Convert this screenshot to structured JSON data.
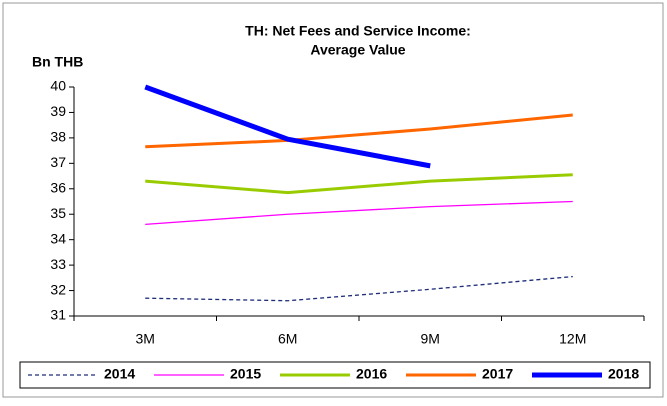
{
  "chart_data": {
    "type": "line",
    "title": [
      "TH: Net Fees and Service Income:",
      "Average Value"
    ],
    "y_label": "Bn THB",
    "categories": [
      "3M",
      "6M",
      "9M",
      "12M"
    ],
    "series": [
      {
        "name": "2014",
        "color": "#1f2d7a",
        "width": 1.3,
        "dash": true,
        "values": [
          31.7,
          31.6,
          32.05,
          32.55
        ]
      },
      {
        "name": "2015",
        "color": "#ff00ff",
        "width": 1.3,
        "dash": false,
        "values": [
          34.6,
          35.0,
          35.3,
          35.5
        ]
      },
      {
        "name": "2016",
        "color": "#99cc00",
        "width": 3,
        "dash": false,
        "values": [
          36.3,
          35.85,
          36.3,
          36.55
        ]
      },
      {
        "name": "2017",
        "color": "#ff6600",
        "width": 3,
        "dash": false,
        "values": [
          37.65,
          37.9,
          38.35,
          38.9
        ]
      },
      {
        "name": "2018",
        "color": "#0000ff",
        "width": 5,
        "dash": false,
        "values": [
          40.0,
          37.95,
          36.9,
          null
        ]
      }
    ],
    "ylim": [
      31,
      40
    ],
    "yticks": [
      31,
      32,
      33,
      34,
      35,
      36,
      37,
      38,
      39,
      40
    ],
    "grid": false
  }
}
